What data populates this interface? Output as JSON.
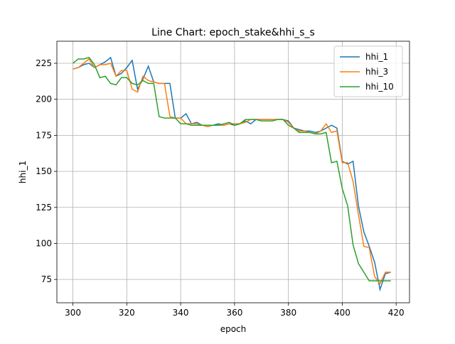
{
  "chart_data": {
    "type": "line",
    "title": "Line Chart: epoch_stake&hhi_s_s",
    "x_label": "epoch",
    "y_label": "hhi_1",
    "x": [
      300,
      302,
      304,
      306,
      308,
      310,
      312,
      314,
      316,
      318,
      320,
      322,
      324,
      326,
      328,
      330,
      332,
      334,
      336,
      338,
      340,
      342,
      344,
      346,
      348,
      350,
      352,
      354,
      356,
      358,
      360,
      362,
      364,
      366,
      368,
      370,
      372,
      374,
      376,
      378,
      380,
      382,
      384,
      386,
      388,
      390,
      392,
      394,
      396,
      398,
      400,
      402,
      404,
      406,
      408,
      410,
      412,
      414,
      416,
      418
    ],
    "series": [
      {
        "name": "hhi_1",
        "color": "#1f77b4",
        "values": [
          221,
          222,
          224,
          225,
          222,
          224,
          226,
          229,
          216,
          218,
          222,
          227,
          207,
          214,
          223,
          212,
          211,
          211,
          211,
          187,
          187,
          190,
          183,
          184,
          182,
          182,
          182,
          183,
          182,
          183,
          182,
          183,
          185,
          183,
          186,
          186,
          186,
          186,
          186,
          186,
          185,
          180,
          179,
          178,
          178,
          177,
          178,
          180,
          182,
          180,
          157,
          155,
          157,
          126,
          108,
          98,
          87,
          68,
          79,
          80
        ]
      },
      {
        "name": "hhi_3",
        "color": "#ff7f0e",
        "values": [
          221,
          222,
          225,
          228,
          222,
          224,
          224,
          225,
          216,
          220,
          220,
          207,
          205,
          216,
          213,
          212,
          211,
          211,
          188,
          187,
          187,
          183,
          183,
          183,
          182,
          181,
          182,
          182,
          182,
          183,
          183,
          183,
          184,
          186,
          186,
          186,
          186,
          186,
          186,
          186,
          184,
          180,
          178,
          178,
          177,
          176,
          178,
          183,
          177,
          178,
          156,
          156,
          143,
          120,
          98,
          97,
          77,
          72,
          80,
          80
        ]
      },
      {
        "name": "hhi_10",
        "color": "#2ca02c",
        "values": [
          225,
          228,
          228,
          229,
          224,
          215,
          216,
          211,
          210,
          215,
          215,
          211,
          210,
          213,
          211,
          211,
          188,
          187,
          187,
          187,
          183,
          183,
          182,
          182,
          182,
          182,
          182,
          182,
          183,
          184,
          182,
          183,
          186,
          186,
          186,
          185,
          185,
          185,
          186,
          186,
          182,
          180,
          177,
          177,
          177,
          176,
          176,
          177,
          156,
          157,
          138,
          126,
          99,
          86,
          80,
          74,
          74,
          74,
          74,
          74
        ]
      }
    ],
    "xlim": [
      294.05,
      424.95
    ],
    "ylim": [
      58.8,
      240.3
    ],
    "xticks": [
      300,
      320,
      340,
      360,
      380,
      400,
      420
    ],
    "yticks": [
      75,
      100,
      125,
      150,
      175,
      200,
      225
    ],
    "grid": true,
    "legend": "upper right"
  }
}
